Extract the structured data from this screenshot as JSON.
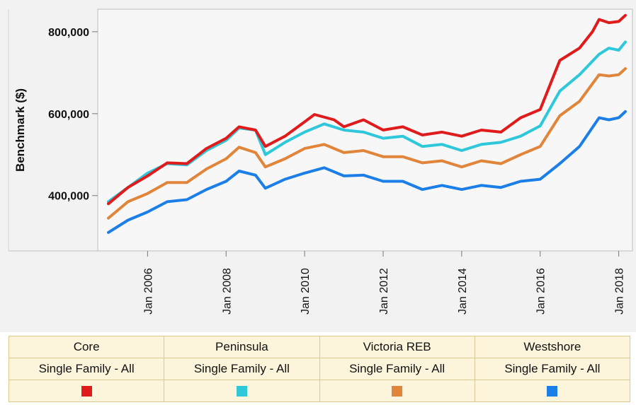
{
  "chart_data": {
    "type": "line",
    "ylabel": "Benchmark ($)",
    "xlabel": "",
    "ylim": [
      265000,
      855000
    ],
    "xlim": [
      2004.73,
      2018.35
    ],
    "grid": false,
    "y_ticks": [
      400000,
      600000,
      800000
    ],
    "y_tick_labels": [
      "400,000",
      "600,000",
      "800,000"
    ],
    "x_ticks": [
      2006,
      2008,
      2010,
      2012,
      2014,
      2016,
      2018
    ],
    "x_tick_labels": [
      "Jan 2006",
      "Jan 2008",
      "Jan 2010",
      "Jan 2012",
      "Jan 2014",
      "Jan 2016",
      "Jan 2018"
    ],
    "legend_position": "bottom",
    "series": [
      {
        "name": "Core",
        "subtitle": "Single Family - All",
        "color": "#e01b1b",
        "x": [
          2005.0,
          2005.5,
          2006.0,
          2006.5,
          2007.0,
          2007.5,
          2008.0,
          2008.33,
          2008.75,
          2009.0,
          2009.5,
          2010.0,
          2010.25,
          2010.75,
          2011.0,
          2011.5,
          2012.0,
          2012.5,
          2013.0,
          2013.5,
          2014.0,
          2014.5,
          2015.0,
          2015.5,
          2016.0,
          2016.5,
          2017.0,
          2017.33,
          2017.5,
          2017.75,
          2018.0,
          2018.17
        ],
        "y": [
          380000,
          420000,
          448000,
          480000,
          478000,
          515000,
          540000,
          568000,
          560000,
          520000,
          545000,
          580000,
          598000,
          585000,
          568000,
          585000,
          560000,
          568000,
          548000,
          555000,
          545000,
          560000,
          555000,
          590000,
          610000,
          730000,
          760000,
          800000,
          830000,
          822000,
          825000,
          840000
        ]
      },
      {
        "name": "Peninsula",
        "subtitle": "Single Family - All",
        "color": "#2ec8da",
        "x": [
          2005.0,
          2005.5,
          2006.0,
          2006.5,
          2007.0,
          2007.5,
          2008.0,
          2008.33,
          2008.75,
          2009.0,
          2009.5,
          2010.0,
          2010.5,
          2011.0,
          2011.5,
          2012.0,
          2012.5,
          2013.0,
          2013.5,
          2014.0,
          2014.5,
          2015.0,
          2015.5,
          2016.0,
          2016.5,
          2017.0,
          2017.5,
          2017.75,
          2018.0,
          2018.17
        ],
        "y": [
          385000,
          420000,
          455000,
          478000,
          475000,
          510000,
          535000,
          565000,
          560000,
          500000,
          530000,
          555000,
          575000,
          560000,
          555000,
          540000,
          545000,
          520000,
          525000,
          510000,
          525000,
          530000,
          545000,
          570000,
          655000,
          695000,
          745000,
          760000,
          755000,
          775000
        ]
      },
      {
        "name": "Victoria REB",
        "subtitle": "Single Family - All",
        "color": "#e0853a",
        "x": [
          2005.0,
          2005.5,
          2006.0,
          2006.5,
          2007.0,
          2007.5,
          2008.0,
          2008.33,
          2008.75,
          2009.0,
          2009.5,
          2010.0,
          2010.5,
          2011.0,
          2011.5,
          2012.0,
          2012.5,
          2013.0,
          2013.5,
          2014.0,
          2014.5,
          2015.0,
          2015.5,
          2016.0,
          2016.5,
          2017.0,
          2017.5,
          2017.75,
          2018.0,
          2018.17
        ],
        "y": [
          345000,
          385000,
          405000,
          432000,
          432000,
          465000,
          490000,
          518000,
          505000,
          470000,
          490000,
          515000,
          525000,
          505000,
          510000,
          495000,
          495000,
          480000,
          485000,
          470000,
          485000,
          478000,
          500000,
          520000,
          595000,
          630000,
          695000,
          692000,
          695000,
          710000
        ]
      },
      {
        "name": "Westshore",
        "subtitle": "Single Family - All",
        "color": "#1c7fe8",
        "x": [
          2005.0,
          2005.5,
          2006.0,
          2006.5,
          2007.0,
          2007.5,
          2008.0,
          2008.33,
          2008.75,
          2009.0,
          2009.5,
          2010.0,
          2010.5,
          2011.0,
          2011.5,
          2012.0,
          2012.5,
          2013.0,
          2013.5,
          2014.0,
          2014.5,
          2015.0,
          2015.5,
          2016.0,
          2016.5,
          2017.0,
          2017.5,
          2017.75,
          2018.0,
          2018.17
        ],
        "y": [
          310000,
          340000,
          360000,
          385000,
          390000,
          415000,
          435000,
          460000,
          450000,
          418000,
          440000,
          455000,
          468000,
          448000,
          450000,
          435000,
          435000,
          415000,
          425000,
          415000,
          425000,
          420000,
          435000,
          440000,
          478000,
          520000,
          590000,
          585000,
          590000,
          605000
        ]
      }
    ]
  }
}
